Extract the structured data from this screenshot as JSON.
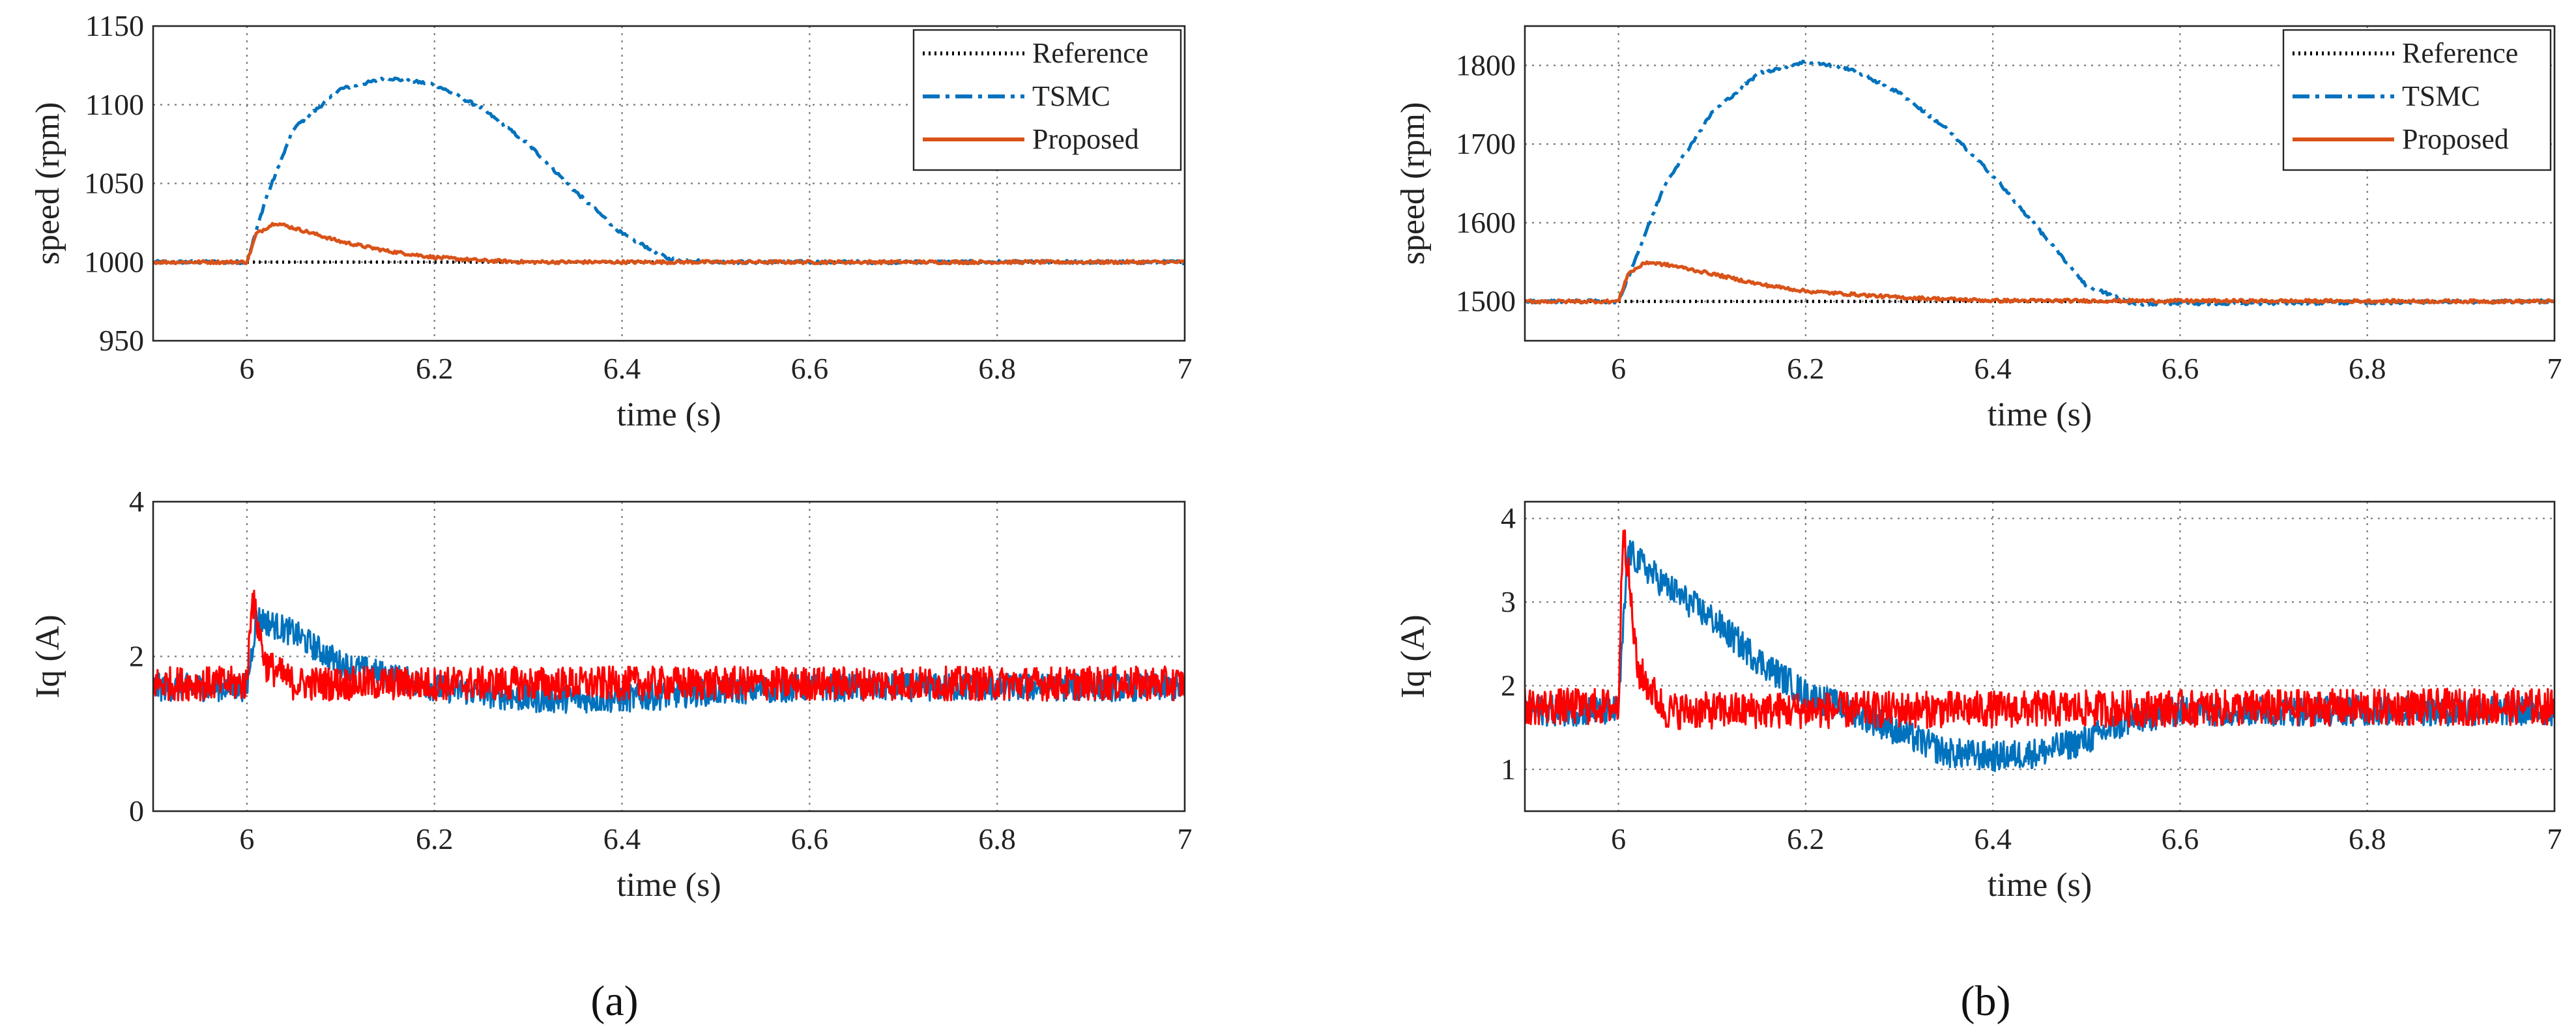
{
  "chart_data": [
    {
      "id": "a-speed",
      "type": "line",
      "xlabel": "time (s)",
      "ylabel": "speed (rpm)",
      "xlim": [
        5.9,
        7
      ],
      "ylim": [
        950,
        1150
      ],
      "xticks": [
        "6",
        "6.2",
        "6.4",
        "6.6",
        "6.8",
        "7"
      ],
      "yticks": [
        "950",
        "1000",
        "1050",
        "1100",
        "1150"
      ],
      "grid": true,
      "legend": "top-right",
      "series": [
        {
          "name": "Reference",
          "style": "dotted",
          "color": "#000000",
          "x": [
            5.9,
            7
          ],
          "y": [
            1000,
            1000
          ]
        },
        {
          "name": "TSMC",
          "style": "dashdot",
          "color": "#0072BD",
          "x": [
            5.9,
            6.0,
            6.02,
            6.05,
            6.1,
            6.15,
            6.2,
            6.25,
            6.3,
            6.35,
            6.4,
            6.45,
            6.5,
            7.0
          ],
          "y": [
            1000,
            1000,
            1040,
            1085,
            1110,
            1117,
            1113,
            1098,
            1075,
            1045,
            1018,
            1002,
            1000,
            1000
          ]
        },
        {
          "name": "Proposed",
          "style": "solid",
          "color": "#D95319",
          "x": [
            5.9,
            6.0,
            6.01,
            6.03,
            6.06,
            6.1,
            6.15,
            6.2,
            6.25,
            6.3,
            7.0
          ],
          "y": [
            1000,
            1000,
            1018,
            1025,
            1020,
            1013,
            1007,
            1003,
            1001,
            1000,
            1000
          ]
        }
      ]
    },
    {
      "id": "a-iq",
      "type": "line",
      "xlabel": "time (s)",
      "ylabel": "Iq (A)",
      "xlim": [
        5.9,
        7
      ],
      "ylim": [
        0,
        4
      ],
      "xticks": [
        "6",
        "6.2",
        "6.4",
        "6.6",
        "6.8",
        "7"
      ],
      "yticks": [
        "0",
        "2",
        "4"
      ],
      "grid": true,
      "series": [
        {
          "name": "TSMC",
          "color": "#0072BD",
          "x": [
            5.9,
            6.0,
            6.01,
            6.05,
            6.1,
            6.2,
            6.3,
            6.4,
            6.5,
            6.6,
            7.0
          ],
          "y": [
            1.6,
            1.6,
            2.5,
            2.3,
            1.9,
            1.6,
            1.45,
            1.45,
            1.55,
            1.6,
            1.6
          ]
        },
        {
          "name": "Proposed",
          "color": "#FF0000",
          "x": [
            5.9,
            6.0,
            6.005,
            6.02,
            6.05,
            7.0
          ],
          "y": [
            1.65,
            1.65,
            2.8,
            1.9,
            1.65,
            1.65
          ]
        }
      ]
    },
    {
      "id": "b-speed",
      "type": "line",
      "xlabel": "time (s)",
      "ylabel": "speed (rpm)",
      "xlim": [
        5.9,
        7
      ],
      "ylim": [
        1450,
        1850
      ],
      "xticks": [
        "6",
        "6.2",
        "6.4",
        "6.6",
        "6.8",
        "7"
      ],
      "yticks": [
        "1500",
        "1600",
        "1700",
        "1800"
      ],
      "grid": true,
      "legend": "top-right",
      "series": [
        {
          "name": "Reference",
          "style": "dotted",
          "color": "#000000",
          "x": [
            5.9,
            7
          ],
          "y": [
            1500,
            1500
          ]
        },
        {
          "name": "TSMC",
          "style": "dashdot",
          "color": "#0072BD",
          "x": [
            5.9,
            6.0,
            6.02,
            6.05,
            6.1,
            6.15,
            6.2,
            6.25,
            6.3,
            6.35,
            6.4,
            6.45,
            6.5,
            6.55,
            7.0
          ],
          "y": [
            1500,
            1500,
            1560,
            1650,
            1740,
            1790,
            1805,
            1795,
            1765,
            1720,
            1660,
            1590,
            1520,
            1497,
            1500
          ]
        },
        {
          "name": "Proposed",
          "style": "solid",
          "color": "#D95319",
          "x": [
            5.9,
            6.0,
            6.01,
            6.03,
            6.06,
            6.1,
            6.15,
            6.2,
            6.3,
            6.4,
            7.0
          ],
          "y": [
            1500,
            1500,
            1535,
            1550,
            1545,
            1535,
            1522,
            1513,
            1505,
            1501,
            1500
          ]
        }
      ]
    },
    {
      "id": "b-iq",
      "type": "line",
      "xlabel": "time (s)",
      "ylabel": "Iq (A)",
      "xlim": [
        5.9,
        7
      ],
      "ylim": [
        0.5,
        4.2
      ],
      "xticks": [
        "6",
        "6.2",
        "6.4",
        "6.6",
        "6.8",
        "7"
      ],
      "yticks": [
        "1",
        "2",
        "3",
        "4"
      ],
      "grid": true,
      "series": [
        {
          "name": "TSMC",
          "color": "#0072BD",
          "x": [
            5.9,
            6.0,
            6.01,
            6.05,
            6.1,
            6.15,
            6.2,
            6.25,
            6.3,
            6.35,
            6.4,
            6.45,
            6.5,
            6.55,
            6.6,
            7.0
          ],
          "y": [
            1.7,
            1.7,
            3.6,
            3.2,
            2.8,
            2.3,
            1.9,
            1.7,
            1.45,
            1.2,
            1.15,
            1.2,
            1.35,
            1.6,
            1.7,
            1.7
          ]
        },
        {
          "name": "Proposed",
          "color": "#FF0000",
          "x": [
            5.9,
            6.0,
            6.005,
            6.02,
            6.05,
            7.0
          ],
          "y": [
            1.75,
            1.75,
            4.0,
            2.2,
            1.7,
            1.75
          ]
        }
      ]
    }
  ],
  "panel_labels": {
    "a": "(a)",
    "b": "(b)"
  }
}
